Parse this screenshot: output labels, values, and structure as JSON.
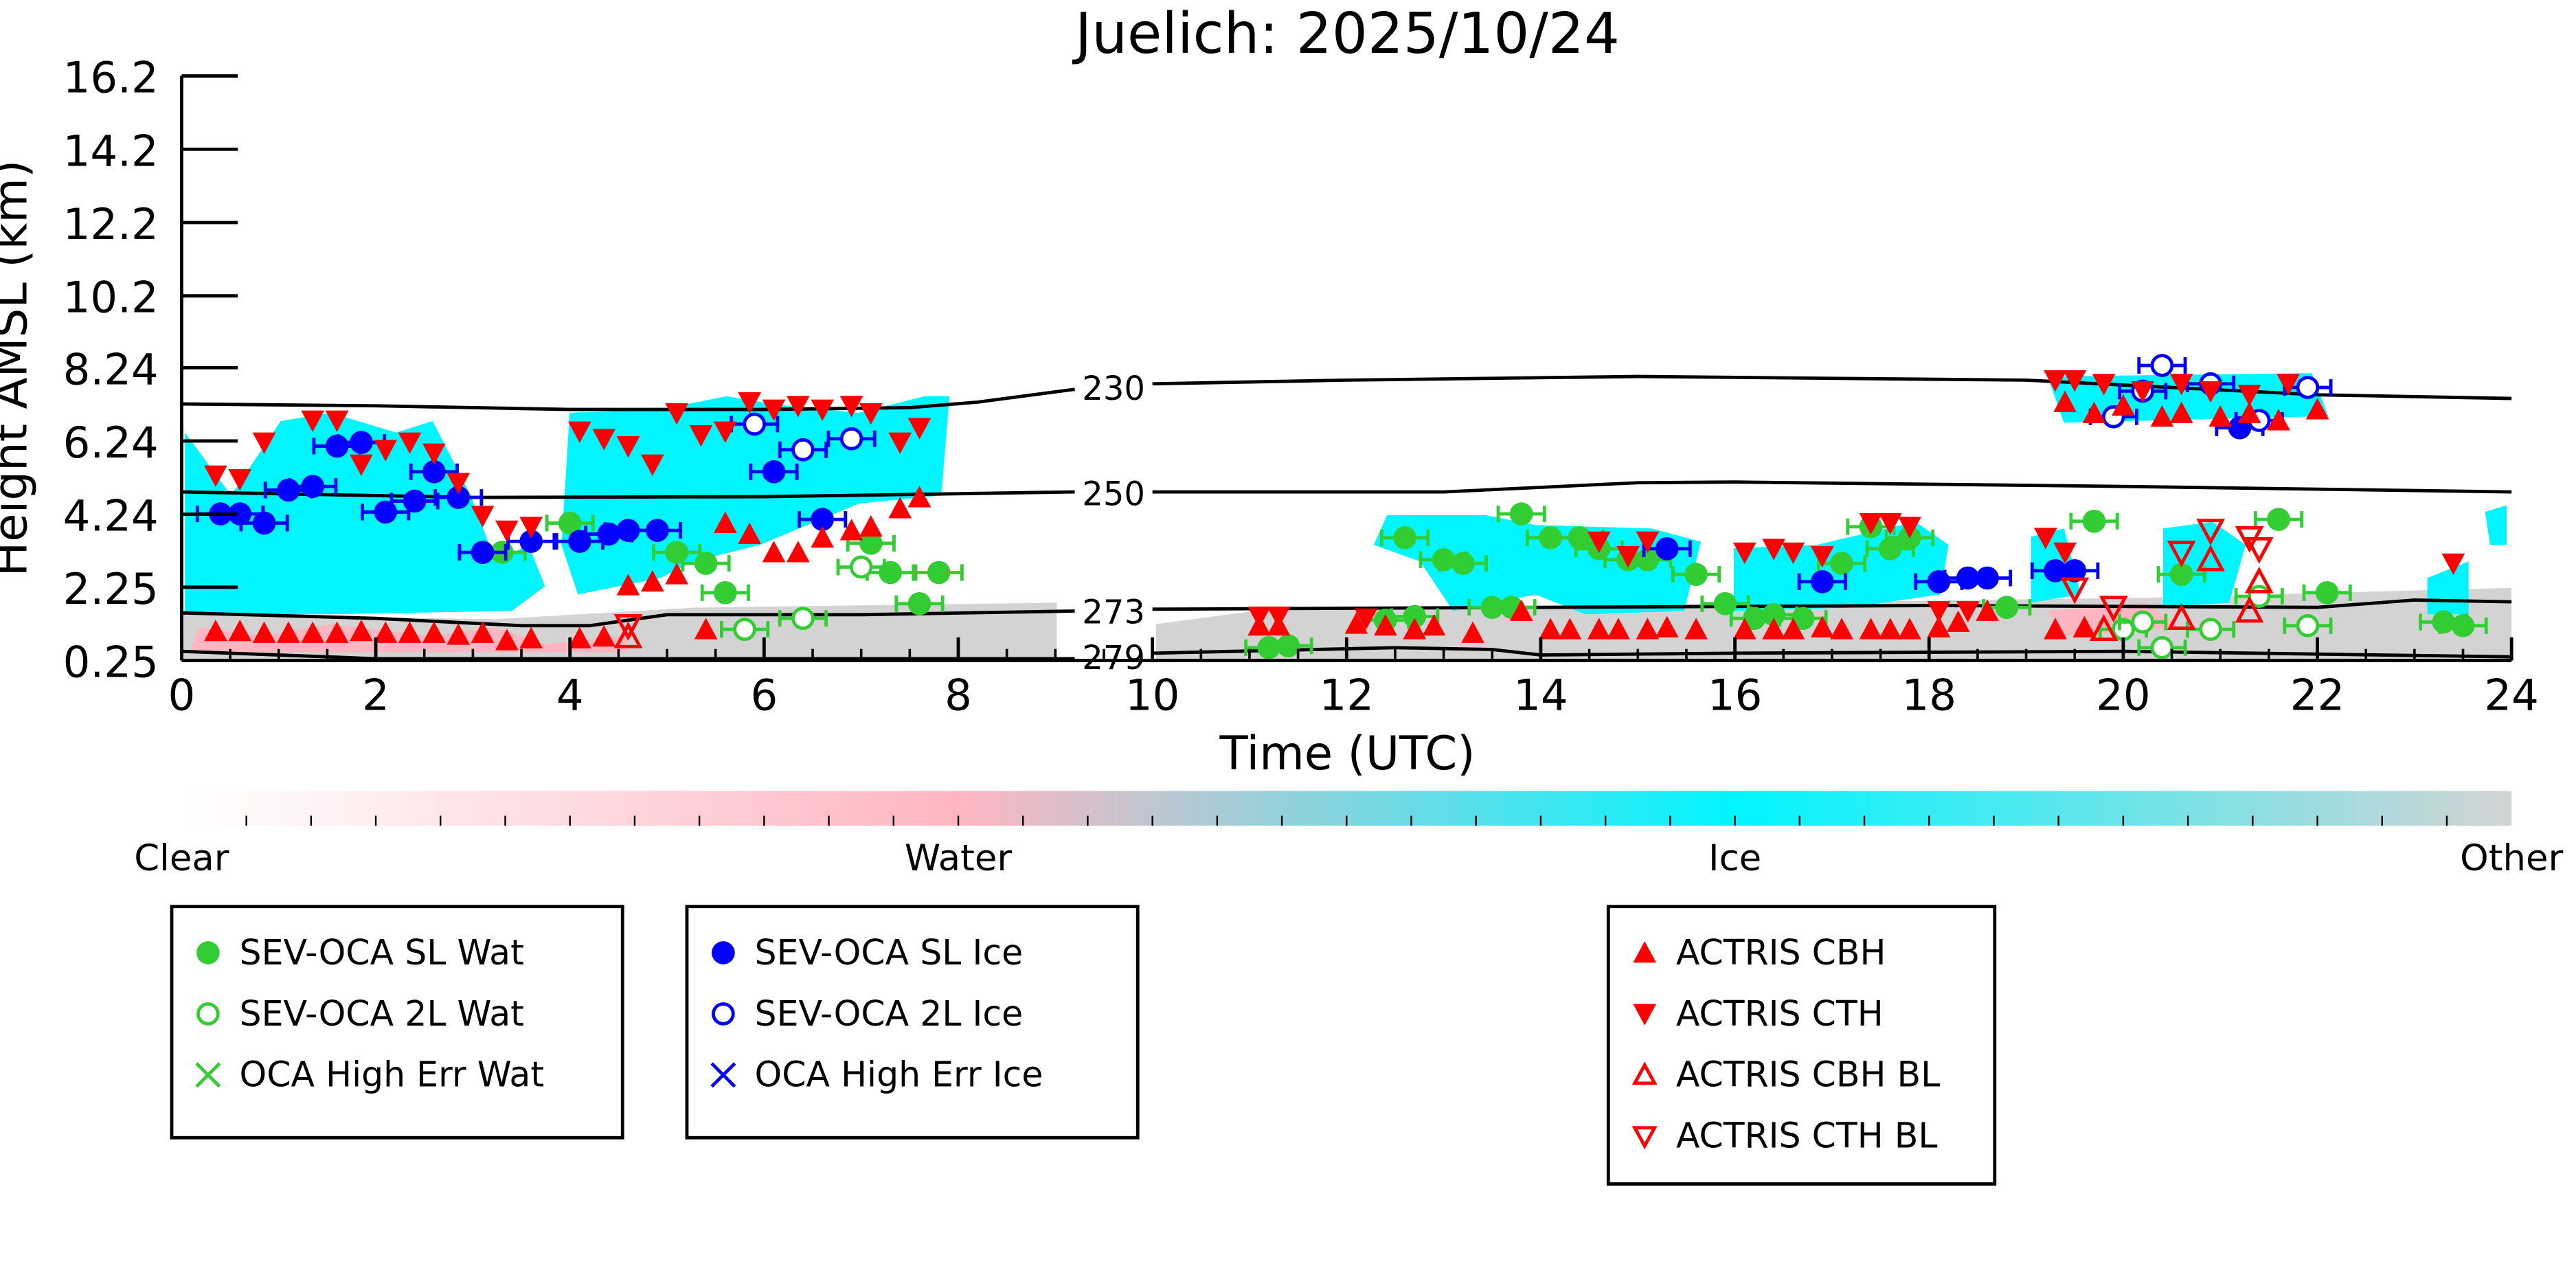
{
  "chart_data": {
    "type": "scatter",
    "title": "Juelich: 2025/10/24",
    "xlabel": "Time (UTC)",
    "ylabel": "Height AMSL (km)",
    "xlim": [
      0,
      24
    ],
    "ylim": [
      0.25,
      16.2
    ],
    "xticks": [
      "0",
      "2",
      "4",
      "6",
      "8",
      "10",
      "12",
      "14",
      "16",
      "18",
      "20",
      "22",
      "24"
    ],
    "yticks": [
      "0.25",
      "2.25",
      "4.24",
      "6.24",
      "8.24",
      "10.2",
      "12.2",
      "14.2",
      "16.2"
    ],
    "ytick_values": [
      0.25,
      2.25,
      4.24,
      6.24,
      8.24,
      10.2,
      12.2,
      14.2,
      16.2
    ],
    "colorbar": {
      "labels": [
        "Clear",
        "Water",
        "Ice",
        "Other"
      ],
      "colors": [
        "#ffffff",
        "#ffb6c1",
        "#00f5ff",
        "#d3d3d3"
      ]
    },
    "contours": [
      {
        "label": "230",
        "points": [
          [
            0,
            7.25
          ],
          [
            2,
            7.2
          ],
          [
            4,
            7.1
          ],
          [
            6,
            7.1
          ],
          [
            7.5,
            7.15
          ],
          [
            8.2,
            7.3
          ],
          [
            9.2,
            7.65
          ]
        ],
        "points2": [
          [
            10,
            7.8
          ],
          [
            12,
            7.9
          ],
          [
            15,
            8.0
          ],
          [
            19,
            7.9
          ],
          [
            22,
            7.5
          ],
          [
            24,
            7.4
          ]
        ]
      },
      {
        "label": "250",
        "points": [
          [
            0,
            4.85
          ],
          [
            3,
            4.7
          ],
          [
            6,
            4.72
          ],
          [
            9.2,
            4.85
          ]
        ],
        "points2": [
          [
            10,
            4.85
          ],
          [
            13,
            4.85
          ],
          [
            15,
            5.1
          ],
          [
            16,
            5.12
          ],
          [
            20,
            5.0
          ],
          [
            24,
            4.85
          ]
        ]
      },
      {
        "label": "273",
        "points": [
          [
            0,
            1.55
          ],
          [
            2,
            1.4
          ],
          [
            3.5,
            1.2
          ],
          [
            4.2,
            1.2
          ],
          [
            5,
            1.5
          ],
          [
            7,
            1.5
          ],
          [
            9.2,
            1.6
          ]
        ],
        "points2": [
          [
            10,
            1.65
          ],
          [
            14,
            1.7
          ],
          [
            18,
            1.75
          ],
          [
            22,
            1.7
          ],
          [
            23,
            1.9
          ],
          [
            24,
            1.85
          ]
        ]
      },
      {
        "label": "279",
        "points": [
          [
            0,
            0.5
          ],
          [
            2,
            0.3
          ],
          [
            9.2,
            0.3
          ]
        ],
        "points2": [
          [
            10,
            0.45
          ],
          [
            12.5,
            0.6
          ],
          [
            13.5,
            0.55
          ],
          [
            14,
            0.4
          ],
          [
            16,
            0.45
          ],
          [
            20,
            0.5
          ],
          [
            24,
            0.35
          ]
        ]
      }
    ],
    "series": [
      {
        "name": "SEV-OCA SL Wat",
        "marker": "circle-filled",
        "color": "#32cd32",
        "points": [
          [
            3.3,
            3.2
          ],
          [
            4.0,
            4.0
          ],
          [
            5.1,
            3.2
          ],
          [
            5.4,
            2.9
          ],
          [
            5.6,
            2.1
          ],
          [
            7.1,
            3.45
          ],
          [
            7.3,
            2.65
          ],
          [
            7.6,
            1.8
          ],
          [
            7.8,
            2.65
          ],
          [
            11.2,
            0.6
          ],
          [
            11.4,
            0.65
          ],
          [
            12.4,
            1.35
          ],
          [
            12.6,
            3.6
          ],
          [
            12.7,
            1.45
          ],
          [
            13.0,
            3.0
          ],
          [
            13.2,
            2.9
          ],
          [
            13.5,
            1.7
          ],
          [
            13.7,
            1.7
          ],
          [
            13.8,
            4.25
          ],
          [
            14.1,
            3.6
          ],
          [
            14.4,
            3.6
          ],
          [
            14.6,
            3.3
          ],
          [
            14.9,
            3.0
          ],
          [
            15.1,
            3.0
          ],
          [
            15.6,
            2.6
          ],
          [
            15.9,
            1.8
          ],
          [
            16.2,
            1.4
          ],
          [
            16.4,
            1.5
          ],
          [
            16.7,
            1.4
          ],
          [
            17.1,
            2.9
          ],
          [
            17.4,
            3.9
          ],
          [
            17.6,
            3.3
          ],
          [
            17.8,
            3.6
          ],
          [
            18.8,
            1.7
          ],
          [
            19.7,
            4.05
          ],
          [
            20.6,
            2.6
          ],
          [
            21.6,
            4.1
          ],
          [
            22.1,
            2.1
          ],
          [
            23.3,
            1.3
          ],
          [
            23.5,
            1.2
          ]
        ]
      },
      {
        "name": "SEV-OCA 2L Wat",
        "marker": "circle-open",
        "color": "#32cd32",
        "points": [
          [
            5.8,
            1.1
          ],
          [
            6.4,
            1.4
          ],
          [
            7.0,
            2.8
          ],
          [
            20.0,
            1.1
          ],
          [
            20.2,
            1.3
          ],
          [
            20.4,
            0.6
          ],
          [
            20.9,
            1.1
          ],
          [
            21.4,
            2.0
          ],
          [
            21.9,
            1.2
          ]
        ]
      },
      {
        "name": "OCA High Err Wat",
        "marker": "x",
        "color": "#32cd32",
        "points": []
      },
      {
        "name": "SEV-OCA SL Ice",
        "marker": "circle-filled",
        "color": "#0000ff",
        "points": [
          [
            0.4,
            4.25
          ],
          [
            0.6,
            4.25
          ],
          [
            0.85,
            4.0
          ],
          [
            1.1,
            4.9
          ],
          [
            1.35,
            5.0
          ],
          [
            1.6,
            6.1
          ],
          [
            1.85,
            6.2
          ],
          [
            2.1,
            4.3
          ],
          [
            2.4,
            4.6
          ],
          [
            2.6,
            5.4
          ],
          [
            2.85,
            4.7
          ],
          [
            3.1,
            3.2
          ],
          [
            3.6,
            3.5
          ],
          [
            4.1,
            3.5
          ],
          [
            4.4,
            3.7
          ],
          [
            4.6,
            3.8
          ],
          [
            4.9,
            3.8
          ],
          [
            6.1,
            5.4
          ],
          [
            6.6,
            4.1
          ],
          [
            15.3,
            3.3
          ],
          [
            16.9,
            2.4
          ],
          [
            18.1,
            2.4
          ],
          [
            18.4,
            2.5
          ],
          [
            18.6,
            2.5
          ],
          [
            19.3,
            2.7
          ],
          [
            19.5,
            2.7
          ],
          [
            21.2,
            6.6
          ]
        ]
      },
      {
        "name": "SEV-OCA 2L Ice",
        "marker": "circle-open",
        "color": "#0000ff",
        "points": [
          [
            5.9,
            6.7
          ],
          [
            6.4,
            6.0
          ],
          [
            6.9,
            6.3
          ],
          [
            19.9,
            6.9
          ],
          [
            20.2,
            7.6
          ],
          [
            20.4,
            8.3
          ],
          [
            20.9,
            7.8
          ],
          [
            21.4,
            6.8
          ],
          [
            21.9,
            7.7
          ]
        ]
      },
      {
        "name": "OCA High Err Ice",
        "marker": "x",
        "color": "#0000ff",
        "points": []
      },
      {
        "name": "ACTRIS CBH",
        "marker": "triangle-up-filled",
        "color": "#ff0000",
        "points": [
          [
            0.35,
            1.05
          ],
          [
            0.6,
            1.05
          ],
          [
            0.85,
            1.0
          ],
          [
            1.1,
            1.0
          ],
          [
            1.35,
            1.0
          ],
          [
            1.6,
            1.0
          ],
          [
            1.85,
            1.05
          ],
          [
            2.1,
            1.0
          ],
          [
            2.35,
            1.0
          ],
          [
            2.6,
            1.0
          ],
          [
            2.85,
            0.95
          ],
          [
            3.1,
            1.0
          ],
          [
            3.35,
            0.8
          ],
          [
            3.6,
            0.85
          ],
          [
            4.1,
            0.85
          ],
          [
            4.35,
            0.9
          ],
          [
            4.6,
            2.3
          ],
          [
            4.85,
            2.4
          ],
          [
            5.1,
            2.6
          ],
          [
            5.4,
            1.1
          ],
          [
            5.6,
            4.0
          ],
          [
            5.85,
            3.7
          ],
          [
            6.1,
            3.2
          ],
          [
            6.35,
            3.2
          ],
          [
            6.6,
            3.6
          ],
          [
            6.9,
            3.8
          ],
          [
            7.1,
            3.9
          ],
          [
            7.4,
            4.4
          ],
          [
            7.6,
            4.7
          ],
          [
            11.1,
            1.2
          ],
          [
            11.3,
            1.2
          ],
          [
            12.1,
            1.25
          ],
          [
            12.4,
            1.2
          ],
          [
            12.7,
            1.1
          ],
          [
            12.9,
            1.2
          ],
          [
            13.3,
            1.0
          ],
          [
            13.8,
            1.6
          ],
          [
            14.1,
            1.1
          ],
          [
            14.3,
            1.1
          ],
          [
            14.6,
            1.1
          ],
          [
            14.8,
            1.1
          ],
          [
            15.1,
            1.1
          ],
          [
            15.3,
            1.15
          ],
          [
            15.6,
            1.1
          ],
          [
            16.1,
            1.1
          ],
          [
            16.4,
            1.1
          ],
          [
            16.6,
            1.1
          ],
          [
            16.9,
            1.15
          ],
          [
            17.1,
            1.1
          ],
          [
            17.4,
            1.1
          ],
          [
            17.6,
            1.1
          ],
          [
            17.8,
            1.1
          ],
          [
            18.1,
            1.15
          ],
          [
            18.3,
            1.3
          ],
          [
            18.6,
            1.6
          ],
          [
            19.3,
            1.1
          ],
          [
            19.6,
            1.15
          ],
          [
            19.4,
            7.3
          ],
          [
            19.7,
            7.0
          ],
          [
            20.0,
            7.2
          ],
          [
            20.4,
            6.9
          ],
          [
            20.6,
            7.0
          ],
          [
            21.0,
            6.9
          ],
          [
            21.3,
            7.0
          ],
          [
            21.6,
            6.8
          ],
          [
            22.0,
            7.1
          ]
        ]
      },
      {
        "name": "ACTRIS CTH",
        "marker": "triangle-down-filled",
        "color": "#ff0000",
        "points": [
          [
            0.35,
            5.3
          ],
          [
            0.6,
            5.2
          ],
          [
            0.85,
            6.2
          ],
          [
            1.35,
            6.8
          ],
          [
            1.6,
            6.8
          ],
          [
            1.85,
            5.6
          ],
          [
            2.1,
            6.0
          ],
          [
            2.35,
            6.2
          ],
          [
            2.6,
            5.9
          ],
          [
            2.85,
            5.1
          ],
          [
            3.1,
            4.2
          ],
          [
            3.35,
            3.8
          ],
          [
            3.6,
            3.9
          ],
          [
            4.1,
            6.5
          ],
          [
            4.35,
            6.3
          ],
          [
            4.6,
            6.1
          ],
          [
            4.85,
            5.6
          ],
          [
            5.1,
            7.0
          ],
          [
            5.35,
            6.4
          ],
          [
            5.6,
            6.5
          ],
          [
            5.85,
            7.3
          ],
          [
            6.1,
            7.1
          ],
          [
            6.35,
            7.2
          ],
          [
            6.6,
            7.1
          ],
          [
            6.9,
            7.2
          ],
          [
            7.1,
            7.0
          ],
          [
            7.4,
            6.2
          ],
          [
            7.6,
            6.6
          ],
          [
            11.1,
            1.45
          ],
          [
            11.3,
            1.45
          ],
          [
            12.2,
            1.4
          ],
          [
            14.6,
            3.5
          ],
          [
            14.9,
            3.1
          ],
          [
            15.1,
            3.5
          ],
          [
            16.1,
            3.2
          ],
          [
            16.4,
            3.3
          ],
          [
            16.6,
            3.2
          ],
          [
            16.9,
            3.1
          ],
          [
            17.4,
            4.0
          ],
          [
            17.6,
            4.0
          ],
          [
            17.8,
            3.9
          ],
          [
            18.1,
            1.6
          ],
          [
            18.4,
            1.6
          ],
          [
            19.2,
            3.6
          ],
          [
            19.4,
            3.2
          ],
          [
            23.4,
            2.9
          ],
          [
            19.3,
            7.9
          ],
          [
            19.5,
            7.9
          ],
          [
            19.8,
            7.8
          ],
          [
            20.2,
            7.6
          ],
          [
            20.6,
            7.8
          ],
          [
            20.9,
            7.6
          ],
          [
            21.3,
            7.5
          ],
          [
            21.7,
            7.8
          ]
        ]
      },
      {
        "name": "ACTRIS CBH BL",
        "marker": "triangle-up-open",
        "color": "#ff0000",
        "points": [
          [
            4.6,
            0.9
          ],
          [
            19.8,
            1.1
          ],
          [
            20.6,
            1.4
          ],
          [
            20.9,
            3.0
          ],
          [
            21.3,
            1.6
          ],
          [
            21.4,
            2.4
          ]
        ]
      },
      {
        "name": "ACTRIS CTH BL",
        "marker": "triangle-down-open",
        "color": "#ff0000",
        "points": [
          [
            4.6,
            1.2
          ],
          [
            19.5,
            2.2
          ],
          [
            19.9,
            1.7
          ],
          [
            20.6,
            3.2
          ],
          [
            20.9,
            3.8
          ],
          [
            21.3,
            3.6
          ],
          [
            21.4,
            3.3
          ]
        ]
      }
    ]
  }
}
